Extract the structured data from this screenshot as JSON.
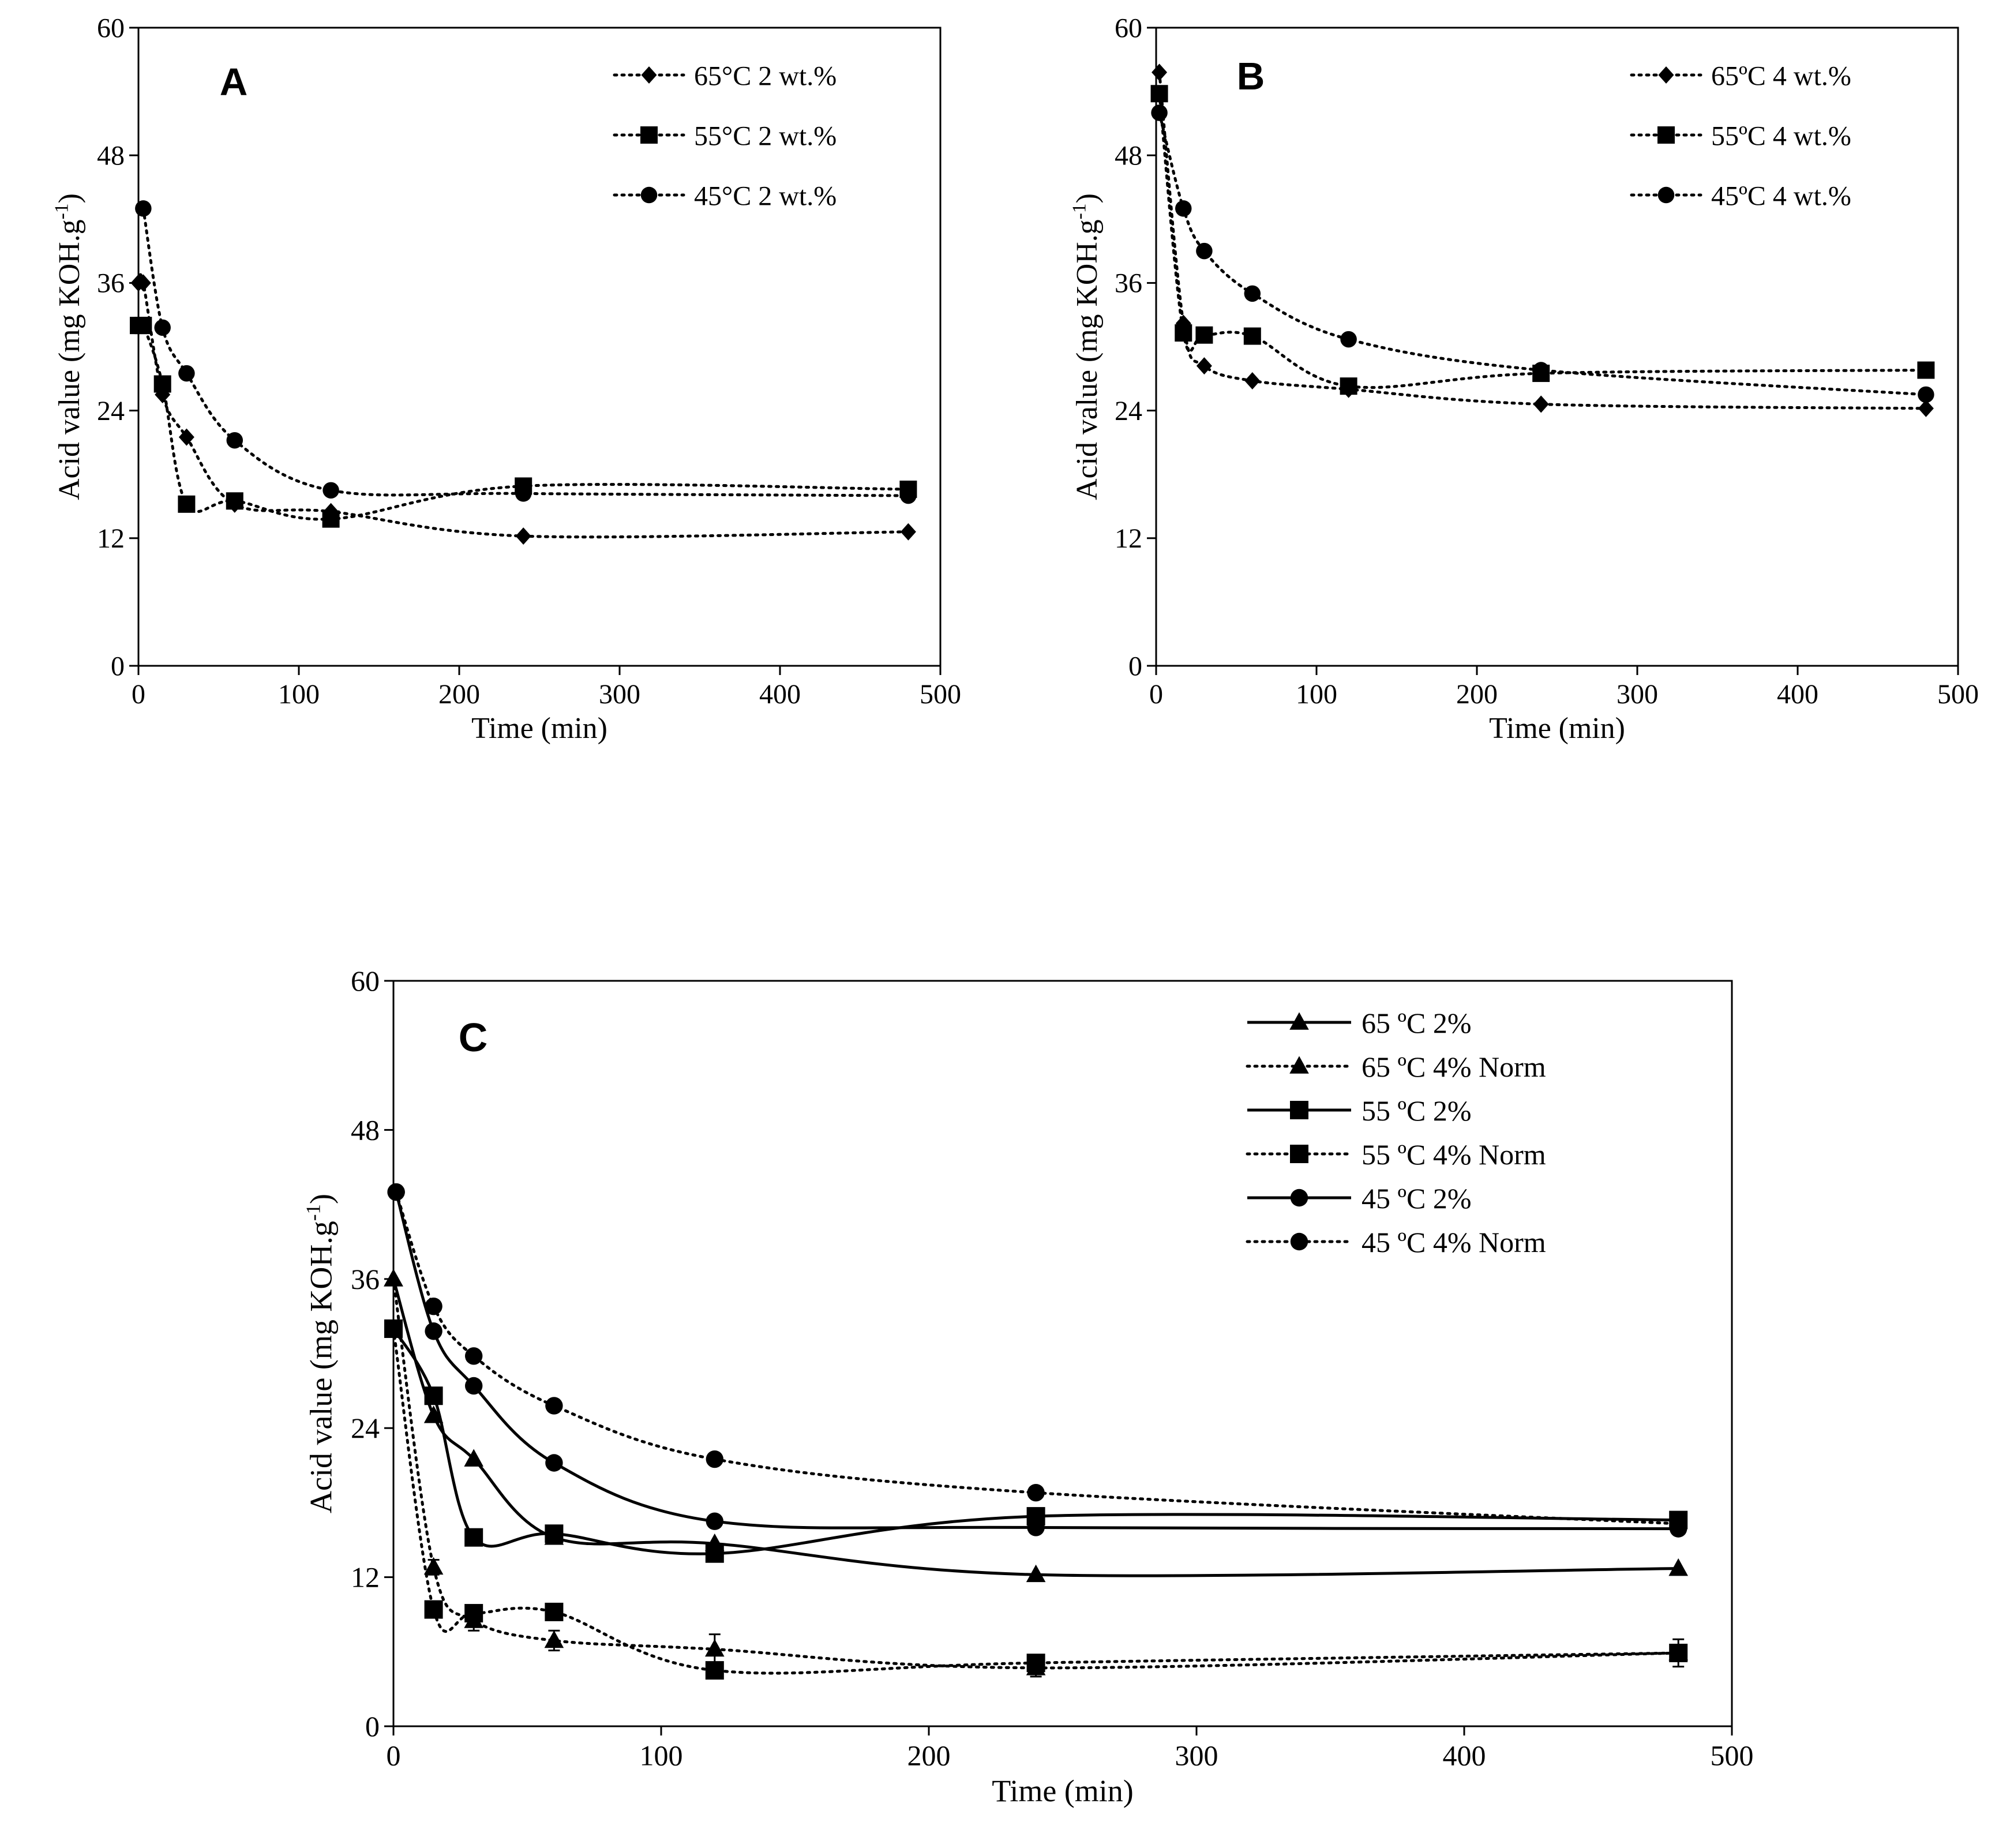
{
  "chart_data": [
    {
      "panel": "A",
      "type": "line",
      "xlabel": "Time (min)",
      "ylabel_main": "Acid value (mg KOH.g",
      "ylabel_sup": "-1",
      "ylabel_close": ")",
      "xlim": [
        0,
        500
      ],
      "ylim": [
        0,
        60
      ],
      "xticks": [
        0,
        100,
        200,
        300,
        400,
        500
      ],
      "yticks": [
        0,
        12,
        24,
        36,
        48,
        60
      ],
      "legend_position": "top-right",
      "series": [
        {
          "name": "65°C 2 wt.%",
          "marker": "diamond",
          "line": "dotted",
          "smooth": true,
          "x": [
            0,
            3,
            15,
            30,
            60,
            120,
            240,
            480
          ],
          "y": [
            36,
            36,
            25.5,
            21.5,
            15.2,
            14.5,
            12.2,
            12.6
          ]
        },
        {
          "name": "55°C 2 wt.%",
          "marker": "square",
          "line": "dotted",
          "smooth": true,
          "x": [
            0,
            3,
            15,
            30,
            60,
            120,
            240,
            480
          ],
          "y": [
            32,
            32,
            26.5,
            15.2,
            15.5,
            13.8,
            16.9,
            16.6
          ]
        },
        {
          "name": "45°C 2 wt.%",
          "marker": "circle",
          "line": "dotted",
          "smooth": true,
          "x": [
            3,
            15,
            30,
            60,
            120,
            240,
            480
          ],
          "y": [
            43,
            31.8,
            27.5,
            21.2,
            16.5,
            16.2,
            16.0
          ]
        }
      ]
    },
    {
      "panel": "B",
      "type": "line",
      "xlabel": "Time (min)",
      "ylabel_main": "Acid value (mg KOH.g",
      "ylabel_sup": "-1",
      "ylabel_close": ")",
      "xlim": [
        0,
        500
      ],
      "ylim": [
        0,
        60
      ],
      "xticks": [
        0,
        100,
        200,
        300,
        400,
        500
      ],
      "yticks": [
        0,
        12,
        24,
        36,
        48,
        60
      ],
      "legend_position": "top-right",
      "series": [
        {
          "name": "65ºC 4 wt.%",
          "marker": "diamond",
          "line": "dotted",
          "smooth": true,
          "x": [
            2,
            17,
            30,
            60,
            120,
            240,
            480
          ],
          "y": [
            55.8,
            32.2,
            28.2,
            26.8,
            26.0,
            24.6,
            24.2
          ]
        },
        {
          "name": "55ºC 4 wt.%",
          "marker": "square",
          "line": "dotted",
          "smooth": true,
          "x": [
            2,
            17,
            30,
            60,
            120,
            240,
            480
          ],
          "y": [
            53.8,
            31.3,
            31.1,
            31.0,
            26.3,
            27.5,
            27.8
          ]
        },
        {
          "name": "45ºC 4 wt.%",
          "marker": "circle",
          "line": "dotted",
          "smooth": true,
          "x": [
            2,
            17,
            30,
            60,
            120,
            240,
            480
          ],
          "y": [
            52,
            43,
            39,
            35,
            30.7,
            27.8,
            25.5
          ]
        }
      ]
    },
    {
      "panel": "C",
      "type": "line",
      "xlabel": "Time (min)",
      "ylabel_main": "Acid value (mg KOH.g",
      "ylabel_sup": "-1",
      "ylabel_close": ")",
      "xlim": [
        0,
        500
      ],
      "ylim": [
        0,
        60
      ],
      "xticks": [
        0,
        100,
        200,
        300,
        400,
        500
      ],
      "yticks": [
        0,
        12,
        24,
        36,
        48,
        60
      ],
      "legend_position": "top-right",
      "series": [
        {
          "name": "65 ºC 2%",
          "marker": "triangle",
          "line": "solid",
          "smooth": true,
          "x": [
            0,
            15,
            30,
            60,
            120,
            240,
            480
          ],
          "y": [
            36,
            25,
            21.5,
            15.2,
            14.7,
            12.2,
            12.7
          ]
        },
        {
          "name": "65 ºC 4% Norm",
          "marker": "triangle",
          "line": "dotted",
          "smooth": true,
          "x": [
            0,
            15,
            30,
            60,
            120,
            240,
            480
          ],
          "y": [
            36,
            12.8,
            8.5,
            6.9,
            6.2,
            4.7,
            5.9
          ],
          "err": [
            0,
            0.6,
            0.8,
            0.8,
            1.2,
            0.7,
            1.1
          ]
        },
        {
          "name": "55 ºC 2%",
          "marker": "square",
          "line": "solid",
          "smooth": true,
          "x": [
            0,
            15,
            30,
            60,
            120,
            240,
            480
          ],
          "y": [
            32,
            26.6,
            15.2,
            15.5,
            13.9,
            16.9,
            16.6
          ]
        },
        {
          "name": "55 ºC 4% Norm",
          "marker": "square",
          "line": "dotted",
          "smooth": true,
          "x": [
            0,
            15,
            30,
            60,
            120,
            240,
            480
          ],
          "y": [
            32,
            9.4,
            9.1,
            9.2,
            4.5,
            5.1,
            5.9
          ],
          "err": [
            0,
            0.4,
            0.4,
            0.4,
            0.5,
            0.4,
            0.5
          ]
        },
        {
          "name": "45 ºC 2%",
          "marker": "circle",
          "line": "solid",
          "smooth": true,
          "x": [
            1,
            15,
            30,
            60,
            120,
            240,
            480
          ],
          "y": [
            43,
            31.8,
            27.4,
            21.2,
            16.5,
            16.0,
            15.9
          ]
        },
        {
          "name": "45 ºC 4% Norm",
          "marker": "circle",
          "line": "dotted",
          "smooth": true,
          "x": [
            1,
            15,
            30,
            60,
            120,
            240,
            480
          ],
          "y": [
            43,
            33.8,
            29.8,
            25.8,
            21.5,
            18.8,
            16.3
          ]
        }
      ]
    }
  ]
}
